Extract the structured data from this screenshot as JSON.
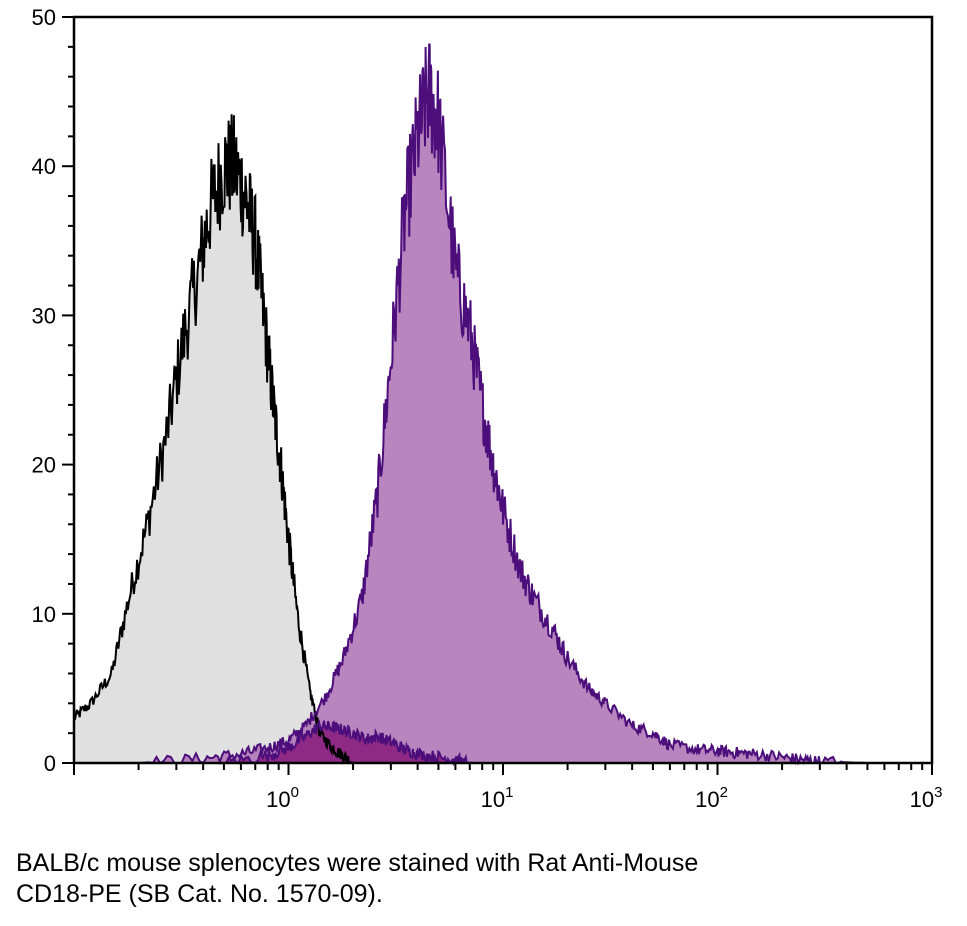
{
  "chart_data": {
    "type": "area",
    "x_scale": "log",
    "xlim": [
      0.1,
      1000
    ],
    "ylim": [
      0,
      50
    ],
    "y_ticks": [
      0,
      10,
      20,
      30,
      40,
      50
    ],
    "y_tick_labels": [
      "0",
      "10",
      "20",
      "30",
      "40",
      "50"
    ],
    "x_ticks": [
      1,
      10,
      100,
      1000
    ],
    "x_tick_labels": [
      {
        "base": "10",
        "exp": "0"
      },
      {
        "base": "10",
        "exp": "1"
      },
      {
        "base": "10",
        "exp": "2"
      },
      {
        "base": "10",
        "exp": "3"
      }
    ],
    "grid": false,
    "series": [
      {
        "color": "#000000",
        "fill": "#e0e0e0",
        "x": [
          0.1,
          0.12,
          0.15,
          0.18,
          0.22,
          0.27,
          0.32,
          0.38,
          0.43,
          0.5,
          0.56,
          0.63,
          0.7,
          0.78,
          0.85,
          0.92,
          1.0,
          1.1,
          1.25,
          1.4,
          1.6,
          1.8,
          2.0
        ],
        "y": [
          3,
          4,
          6,
          11,
          16,
          22,
          28,
          33,
          37,
          40,
          40,
          38,
          35,
          29,
          24,
          20,
          15,
          10,
          5,
          2,
          1,
          0.5,
          0
        ]
      },
      {
        "color": "#4b0e7a",
        "fill": "#b37bba",
        "x": [
          0.2,
          0.4,
          0.6,
          0.8,
          1.0,
          1.2,
          1.5,
          1.8,
          2.2,
          2.6,
          3.0,
          3.5,
          4.0,
          4.5,
          5.0,
          6.0,
          7.0,
          8.0,
          9.0,
          10,
          12,
          14,
          17,
          20,
          25,
          30,
          40,
          50,
          60,
          80,
          100,
          120,
          150,
          200,
          250,
          300,
          500
        ],
        "y": [
          0,
          0.3,
          0.6,
          1,
          1.5,
          2.5,
          4.5,
          7,
          11,
          18,
          27,
          37,
          42,
          45,
          43,
          33,
          29,
          24,
          20,
          17,
          13,
          11,
          9,
          7,
          5,
          4,
          2.5,
          2,
          1.2,
          0.9,
          0.8,
          0.7,
          0.6,
          0.4,
          0.2,
          0.1,
          0
        ]
      },
      {
        "color": "#4b0e7a",
        "fill": "#8e2a86",
        "x": [
          0.5,
          0.8,
          1.0,
          1.2,
          1.4,
          1.6,
          1.8,
          2.0,
          2.3,
          2.6,
          3.0,
          3.5,
          4.0,
          5.0,
          6.0,
          7.0
        ],
        "y": [
          0,
          0.5,
          1,
          1.8,
          2.5,
          2.4,
          2.2,
          2.0,
          1.6,
          1.8,
          1.4,
          0.9,
          0.6,
          0.4,
          0.2,
          0
        ]
      }
    ]
  },
  "caption": {
    "line1": "BALB/c mouse splenocytes were stained with Rat Anti-Mouse",
    "line2": "CD18-PE (SB Cat. No. 1570-09)."
  }
}
